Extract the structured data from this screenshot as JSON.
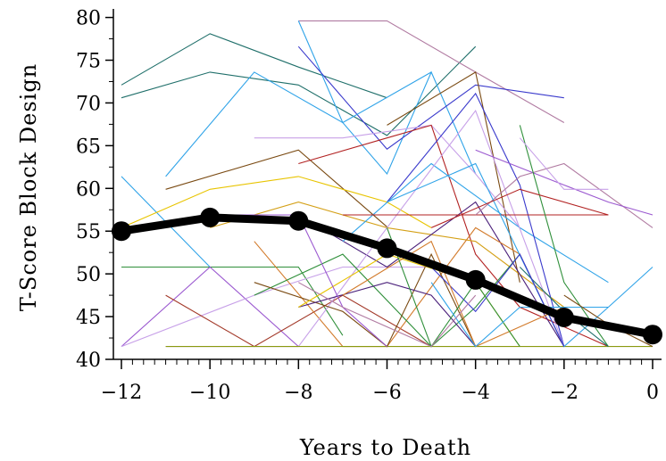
{
  "chart_data": {
    "type": "line",
    "title": "",
    "xlabel": "Years to Death",
    "ylabel": "T-Score Block Design",
    "xlim": [
      -12,
      0
    ],
    "ylim": [
      40,
      81
    ],
    "x_ticks": [
      -12,
      -10,
      -8,
      -6,
      -4,
      -2,
      0
    ],
    "x_tick_labels": [
      "−12",
      "−10",
      "−8",
      "−6",
      "−4",
      "−2",
      "0"
    ],
    "y_ticks": [
      40,
      45,
      50,
      55,
      60,
      65,
      70,
      75,
      80
    ],
    "y_tick_labels": [
      "40",
      "45",
      "50",
      "55",
      "60",
      "65",
      "70",
      "75",
      "80"
    ],
    "grid": false,
    "legend": "none",
    "mean_series": {
      "color": "#000000",
      "x": [
        -12,
        -10,
        -8,
        -6,
        -4,
        -2,
        0
      ],
      "y": [
        55.0,
        56.6,
        56.2,
        53.0,
        49.3,
        44.9,
        42.9
      ]
    },
    "individual_series": [
      {
        "color": "#1f6f6a",
        "x": [
          -12,
          -10,
          -8,
          -6
        ],
        "y": [
          72.1,
          78.1,
          74.2,
          70.6
        ]
      },
      {
        "color": "#1f6f6a",
        "x": [
          -12,
          -10,
          -8,
          -6,
          -4
        ],
        "y": [
          70.6,
          73.6,
          72.1,
          66.2,
          76.6
        ]
      },
      {
        "color": "#b07aa1",
        "x": [
          -8,
          -6,
          -4,
          -2
        ],
        "y": [
          79.6,
          79.6,
          73.6,
          67.7
        ]
      },
      {
        "color": "#2fa3e8",
        "x": [
          -8,
          -7,
          -6,
          -5,
          -4
        ],
        "y": [
          79.6,
          67.7,
          61.7,
          73.6,
          61.7
        ]
      },
      {
        "color": "#3a3acc",
        "x": [
          -8,
          -6,
          -4,
          -2
        ],
        "y": [
          76.6,
          64.6,
          72.1,
          70.6
        ]
      },
      {
        "color": "#2fa3e8",
        "x": [
          -11,
          -9,
          -7,
          -5
        ],
        "y": [
          61.4,
          73.6,
          67.7,
          73.6
        ]
      },
      {
        "color": "#2fa3e8",
        "x": [
          -12,
          -10,
          -8
        ],
        "y": [
          61.4,
          50.8,
          50.8
        ]
      },
      {
        "color": "#7a4a12",
        "x": [
          -11,
          -8,
          -6
        ],
        "y": [
          59.9,
          64.5,
          55.5
        ]
      },
      {
        "color": "#7a4a12",
        "x": [
          -6,
          -4,
          -3
        ],
        "y": [
          67.4,
          73.6,
          49.0
        ]
      },
      {
        "color": "#2f8f3a",
        "x": [
          -12,
          -10,
          -8,
          -7
        ],
        "y": [
          50.8,
          50.8,
          50.8,
          42.8
        ]
      },
      {
        "color": "#9b59d0",
        "x": [
          -12,
          -10,
          -8
        ],
        "y": [
          41.5,
          50.8,
          41.5
        ]
      },
      {
        "color": "#c7a0e8",
        "x": [
          -12,
          -9,
          -7,
          -5
        ],
        "y": [
          41.5,
          47.5,
          50.8,
          50.8
        ]
      },
      {
        "color": "#a33a2a",
        "x": [
          -11,
          -9,
          -7,
          -5
        ],
        "y": [
          47.5,
          41.5,
          47.5,
          41.5
        ]
      },
      {
        "color": "#e8c400",
        "x": [
          -12,
          -10,
          -8,
          -7,
          -6,
          -5
        ],
        "y": [
          55.4,
          59.9,
          61.4,
          59.9,
          58.4,
          55.4
        ]
      },
      {
        "color": "#c7a0e8",
        "x": [
          -9,
          -7,
          -5,
          -4,
          -3
        ],
        "y": [
          65.9,
          65.9,
          67.4,
          61.7,
          55.4
        ]
      },
      {
        "color": "#b22222",
        "x": [
          -8,
          -6,
          -5,
          -4,
          -3,
          -1
        ],
        "y": [
          62.9,
          65.9,
          67.4,
          52.3,
          46.1,
          41.5
        ]
      },
      {
        "color": "#d4a017",
        "x": [
          -10,
          -8,
          -6,
          -4,
          -2
        ],
        "y": [
          55.4,
          58.4,
          55.4,
          53.8,
          46.1
        ]
      },
      {
        "color": "#4a1f7a",
        "x": [
          -8,
          -6,
          -4,
          -2
        ],
        "y": [
          56.9,
          50.8,
          58.4,
          41.5
        ]
      },
      {
        "color": "#2fa3e8",
        "x": [
          -7,
          -5,
          -3,
          -1
        ],
        "y": [
          53.8,
          62.9,
          55.4,
          49.0
        ]
      },
      {
        "color": "#3a3acc",
        "x": [
          -6,
          -4,
          -3,
          -2
        ],
        "y": [
          58.4,
          71.1,
          60.4,
          41.5
        ]
      },
      {
        "color": "#d27a2a",
        "x": [
          -9,
          -7,
          -6,
          -4,
          -3,
          -2
        ],
        "y": [
          53.8,
          41.5,
          41.5,
          55.4,
          52.3,
          41.5
        ]
      },
      {
        "color": "#c7a0e8",
        "x": [
          -11,
          -10,
          -8,
          -6,
          -4,
          -2
        ],
        "y": [
          41.5,
          41.5,
          41.5,
          55.4,
          69.1,
          41.5
        ]
      },
      {
        "color": "#8a9a10",
        "x": [
          -11,
          -8,
          -6,
          -4,
          -2,
          0
        ],
        "y": [
          41.5,
          41.5,
          41.5,
          41.5,
          41.5,
          41.5
        ]
      },
      {
        "color": "#2f8f3a",
        "x": [
          -9,
          -7,
          -5,
          -4,
          -3
        ],
        "y": [
          47.5,
          52.3,
          41.5,
          46.1,
          52.3
        ]
      },
      {
        "color": "#b22222",
        "x": [
          -7,
          -5,
          -3,
          -1
        ],
        "y": [
          56.9,
          56.9,
          56.9,
          56.9
        ]
      },
      {
        "color": "#b07aa1",
        "x": [
          -4,
          -3,
          -2,
          0
        ],
        "y": [
          56.9,
          61.4,
          62.9,
          55.4
        ]
      },
      {
        "color": "#9b59d0",
        "x": [
          -4,
          -2,
          -1,
          0
        ],
        "y": [
          64.5,
          60.4,
          58.4,
          56.9
        ]
      },
      {
        "color": "#2f8f3a",
        "x": [
          -3,
          -2,
          -1
        ],
        "y": [
          67.4,
          49.0,
          41.5
        ]
      },
      {
        "color": "#2fa3e8",
        "x": [
          -6,
          -4,
          -2,
          -1,
          0
        ],
        "y": [
          58.4,
          62.9,
          41.5,
          46.1,
          50.8
        ]
      },
      {
        "color": "#7a4a12",
        "x": [
          -9,
          -7,
          -6,
          -5,
          -4
        ],
        "y": [
          49.0,
          45.6,
          41.5,
          52.3,
          41.5
        ]
      },
      {
        "color": "#4a1f7a",
        "x": [
          -8,
          -6,
          -5,
          -4
        ],
        "y": [
          46.1,
          49.0,
          47.5,
          41.5
        ]
      },
      {
        "color": "#1f6f6a",
        "x": [
          -3,
          -2,
          -1
        ],
        "y": [
          50.8,
          45.6,
          41.5
        ]
      },
      {
        "color": "#b22222",
        "x": [
          -5,
          -3,
          -1
        ],
        "y": [
          55.4,
          59.9,
          56.9
        ]
      },
      {
        "color": "#e8c400",
        "x": [
          -8,
          -6,
          -4,
          -3
        ],
        "y": [
          46.1,
          52.3,
          49.0,
          41.5
        ]
      },
      {
        "color": "#9b59d0",
        "x": [
          -10,
          -8,
          -7,
          -6
        ],
        "y": [
          56.9,
          56.9,
          46.1,
          41.5
        ]
      },
      {
        "color": "#3a3acc",
        "x": [
          -5,
          -4,
          -3,
          -2
        ],
        "y": [
          50.8,
          45.6,
          52.3,
          41.5
        ]
      },
      {
        "color": "#d27a2a",
        "x": [
          -7,
          -5,
          -4,
          -2
        ],
        "y": [
          47.5,
          53.8,
          41.5,
          46.1
        ]
      },
      {
        "color": "#2f8f3a",
        "x": [
          -6,
          -5,
          -4,
          -3
        ],
        "y": [
          55.4,
          41.5,
          49.0,
          41.5
        ]
      },
      {
        "color": "#c7a0e8",
        "x": [
          -3,
          -2,
          -1
        ],
        "y": [
          65.9,
          59.9,
          59.9
        ]
      },
      {
        "color": "#2fa3e8",
        "x": [
          -5,
          -4,
          -3,
          -1
        ],
        "y": [
          49.0,
          41.5,
          46.1,
          46.1
        ]
      },
      {
        "color": "#b07aa1",
        "x": [
          -8,
          -7,
          -5,
          -4
        ],
        "y": [
          49.0,
          46.1,
          41.5,
          47.5
        ]
      },
      {
        "color": "#7a4a12",
        "x": [
          -2,
          -1,
          0
        ],
        "y": [
          47.5,
          44.1,
          41.5
        ]
      }
    ]
  }
}
